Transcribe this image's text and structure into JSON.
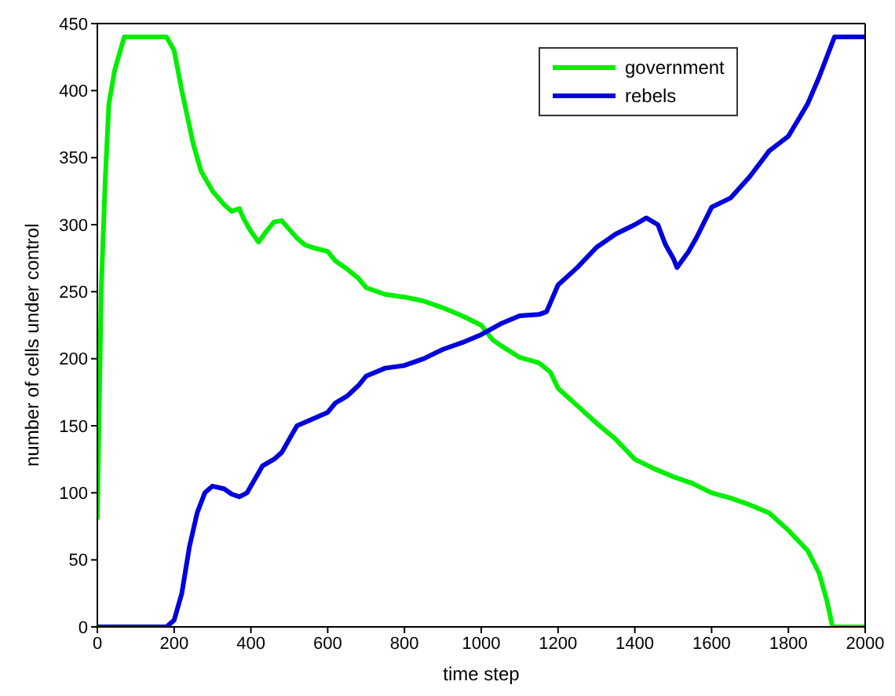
{
  "chart_data": {
    "type": "line",
    "xlabel": "time step",
    "ylabel": "number of cells under control",
    "xlim": [
      0,
      2000
    ],
    "ylim": [
      0,
      450
    ],
    "xticks": [
      0,
      200,
      400,
      600,
      800,
      1000,
      1200,
      1400,
      1600,
      1800,
      2000
    ],
    "yticks": [
      0,
      50,
      100,
      150,
      200,
      250,
      300,
      350,
      400,
      450
    ],
    "grid": false,
    "legend": "top right",
    "marker": "none",
    "line_style": "solid",
    "series": [
      {
        "name": "government",
        "color": "#00ee00",
        "x": [
          0,
          10,
          20,
          30,
          45,
          60,
          70,
          180,
          200,
          220,
          250,
          270,
          300,
          330,
          350,
          370,
          380,
          400,
          420,
          440,
          460,
          480,
          520,
          540,
          560,
          600,
          620,
          650,
          680,
          700,
          750,
          800,
          850,
          900,
          950,
          1000,
          1030,
          1050,
          1100,
          1150,
          1180,
          1200,
          1250,
          1300,
          1350,
          1400,
          1450,
          1500,
          1550,
          1600,
          1650,
          1700,
          1750,
          1800,
          1850,
          1880,
          1900,
          1915,
          2000
        ],
        "values": [
          80,
          250,
          330,
          390,
          415,
          430,
          440,
          440,
          430,
          400,
          360,
          340,
          325,
          315,
          310,
          312,
          305,
          295,
          287,
          295,
          302,
          303,
          290,
          285,
          283,
          280,
          273,
          267,
          260,
          253,
          248,
          246,
          243,
          238,
          232,
          225,
          214,
          210,
          201,
          197,
          190,
          178,
          165,
          152,
          140,
          125,
          118,
          112,
          107,
          100,
          96,
          91,
          85,
          72,
          57,
          40,
          20,
          0,
          0
        ]
      },
      {
        "name": "rebels",
        "color": "#0000dd",
        "x": [
          0,
          180,
          200,
          220,
          240,
          260,
          280,
          300,
          330,
          350,
          370,
          390,
          410,
          430,
          460,
          480,
          500,
          520,
          560,
          600,
          620,
          650,
          680,
          700,
          750,
          800,
          850,
          900,
          950,
          1000,
          1050,
          1100,
          1150,
          1170,
          1200,
          1250,
          1300,
          1350,
          1400,
          1430,
          1460,
          1480,
          1500,
          1510,
          1540,
          1560,
          1600,
          1650,
          1700,
          1750,
          1800,
          1850,
          1880,
          1900,
          1920,
          2000
        ],
        "values": [
          0,
          0,
          5,
          25,
          60,
          85,
          100,
          105,
          103,
          99,
          97,
          100,
          110,
          120,
          125,
          130,
          140,
          150,
          155,
          160,
          167,
          172,
          180,
          187,
          193,
          195,
          200,
          207,
          212,
          218,
          226,
          232,
          233,
          235,
          255,
          268,
          283,
          293,
          300,
          305,
          300,
          285,
          275,
          268,
          280,
          290,
          313,
          320,
          336,
          355,
          366,
          390,
          410,
          425,
          440,
          440
        ]
      }
    ]
  }
}
